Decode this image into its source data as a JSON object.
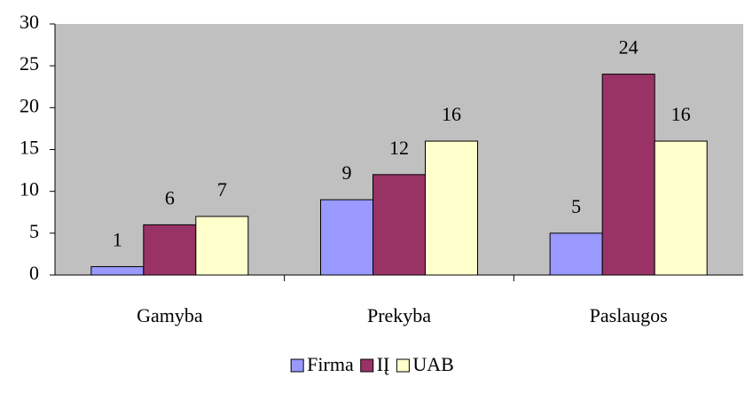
{
  "chart_data": {
    "type": "bar",
    "categories": [
      "Gamyba",
      "Prekyba",
      "Paslaugos"
    ],
    "series": [
      {
        "name": "Firma",
        "color": "#9999ff",
        "values": [
          1,
          9,
          5
        ]
      },
      {
        "name": "IĮ",
        "color": "#993366",
        "values": [
          6,
          12,
          24
        ]
      },
      {
        "name": "UAB",
        "color": "#ffffcc",
        "values": [
          7,
          16,
          16
        ]
      }
    ],
    "ylim": [
      0,
      30
    ],
    "yticks": [
      0,
      5,
      10,
      15,
      20,
      25,
      30
    ],
    "plot_background": "#c0c0c0",
    "legend": "bottom"
  }
}
